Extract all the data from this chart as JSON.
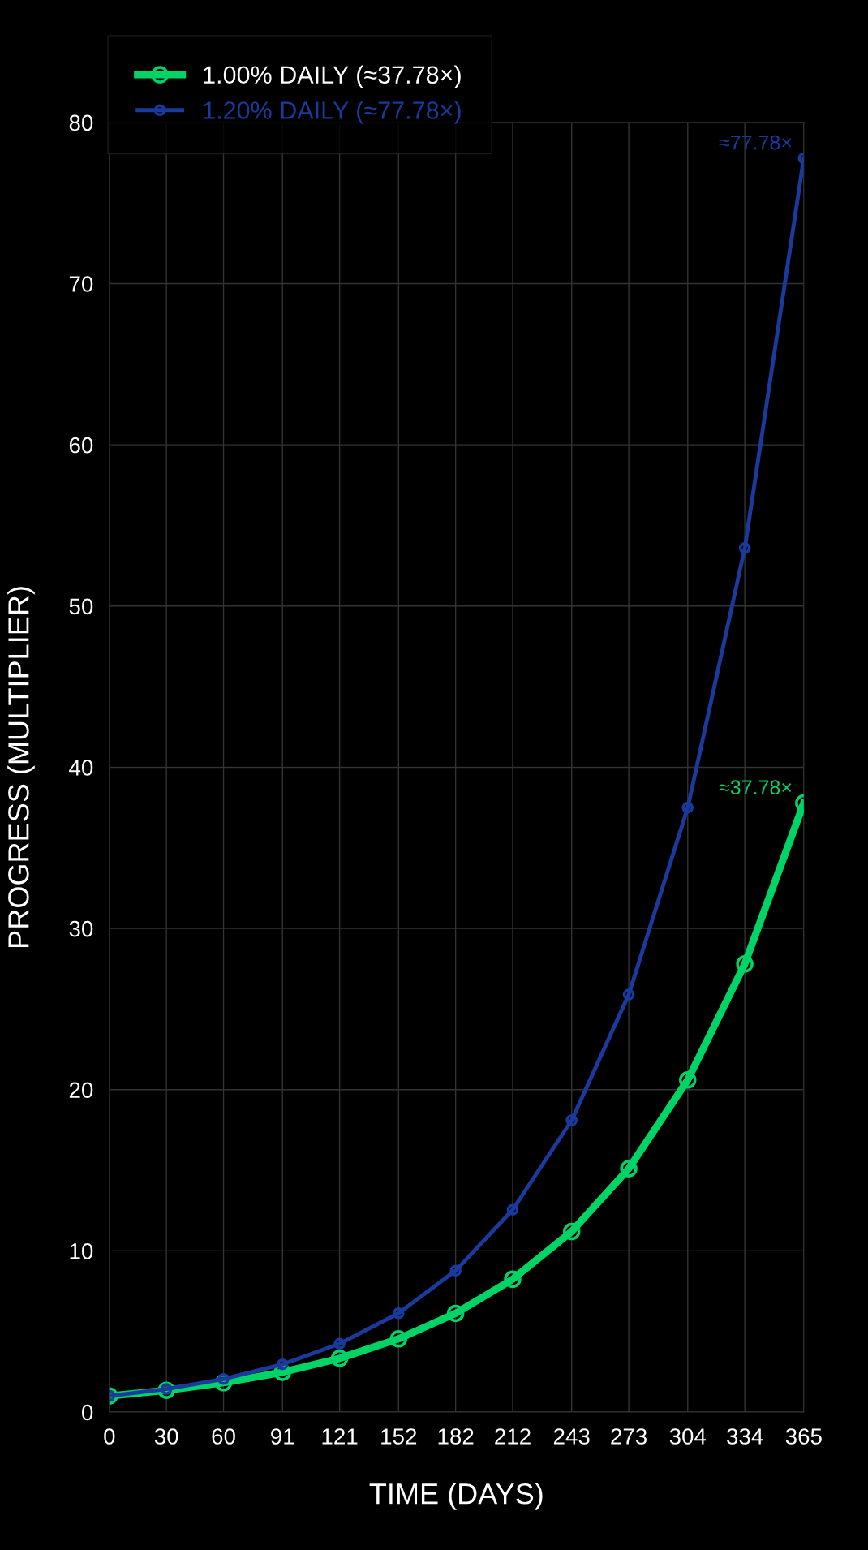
{
  "chart_data": {
    "type": "line",
    "xlabel": "TIME (DAYS)",
    "ylabel": "PROGRESS (MULTIPLIER)",
    "x": [
      0,
      30,
      60,
      91,
      121,
      152,
      182,
      212,
      243,
      273,
      304,
      334,
      365
    ],
    "series": [
      {
        "name": "1.00% DAILY (≈37.78×)",
        "color": "#00d466",
        "values": [
          1.0,
          1.35,
          1.82,
          2.47,
          3.33,
          4.54,
          6.12,
          8.24,
          11.2,
          15.1,
          20.6,
          27.8,
          37.78
        ]
      },
      {
        "name": "1.20% DAILY (≈77.78×)",
        "color": "#1a3a9e",
        "values": [
          1.0,
          1.43,
          2.05,
          2.96,
          4.24,
          6.13,
          8.77,
          12.55,
          18.1,
          25.9,
          37.5,
          53.6,
          77.78
        ]
      }
    ],
    "annotations": [
      {
        "text": "≈37.78×",
        "x": 365,
        "y": 37.78
      },
      {
        "text": "≈77.78×",
        "x": 365,
        "y": 77.78
      }
    ],
    "xlim": [
      0,
      365
    ],
    "ylim": [
      0,
      80
    ],
    "xticks": [
      0,
      30,
      60,
      91,
      121,
      152,
      182,
      212,
      243,
      273,
      304,
      334,
      365
    ],
    "yticks": [
      0,
      10,
      20,
      30,
      40,
      50,
      60,
      70,
      80
    ],
    "grid": true,
    "legend": "top left",
    "marker": "circle",
    "line_style": "solid"
  }
}
